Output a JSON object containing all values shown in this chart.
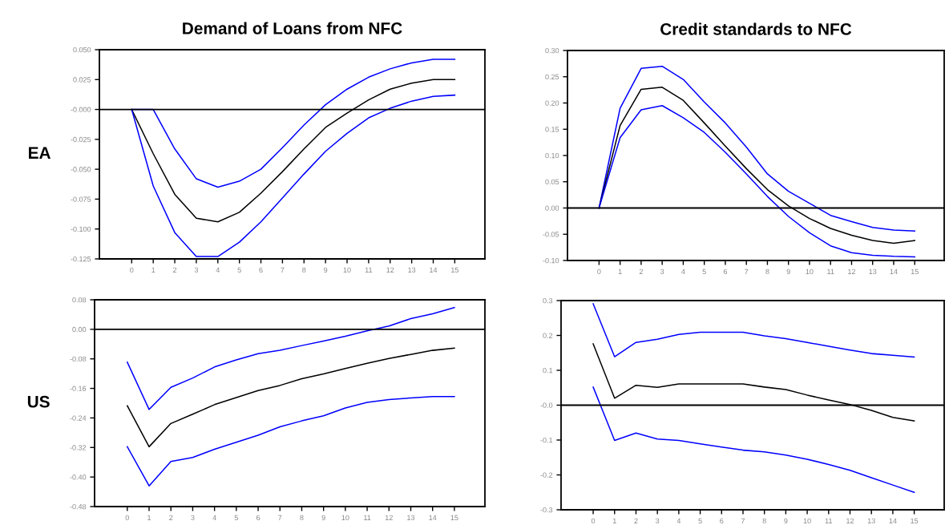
{
  "chart_data": [
    {
      "type": "line",
      "title": "Demand of Loans from NFC",
      "ylabel": "EA",
      "x": [
        0,
        1,
        2,
        3,
        4,
        5,
        6,
        7,
        8,
        9,
        10,
        11,
        12,
        13,
        14,
        15
      ],
      "xlim": [
        -1.5,
        16.4
      ],
      "xticks": [
        0,
        1,
        2,
        3,
        4,
        5,
        6,
        7,
        8,
        9,
        10,
        11,
        12,
        13,
        14,
        15
      ],
      "ylim": [
        -0.125,
        0.05
      ],
      "yticks": [
        {
          "value": 0.05,
          "label": "0.050"
        },
        {
          "value": 0.025,
          "label": "0.025"
        },
        {
          "value": 0,
          "label": "-0.000"
        },
        {
          "value": -0.025,
          "label": "-0.025"
        },
        {
          "value": -0.05,
          "label": "-0.050"
        },
        {
          "value": -0.075,
          "label": "-0.075"
        },
        {
          "value": -0.1,
          "label": "-0.100"
        },
        {
          "value": -0.125,
          "label": "-0.125"
        }
      ],
      "grid": false,
      "ref_lines": [
        {
          "axis": "y",
          "value": 0,
          "color": "#000000"
        }
      ],
      "series": [
        {
          "color": "#0000ff",
          "values": [
            0,
            0,
            -0.033,
            -0.058,
            -0.065,
            -0.06,
            -0.05,
            -0.032,
            -0.013,
            0.004,
            0.017,
            0.027,
            0.034,
            0.039,
            0.042,
            0.042
          ]
        },
        {
          "color": "#000000",
          "values": [
            0,
            -0.037,
            -0.071,
            -0.091,
            -0.094,
            -0.086,
            -0.07,
            -0.052,
            -0.033,
            -0.015,
            -0.003,
            0.008,
            0.017,
            0.022,
            0.025,
            0.025
          ]
        },
        {
          "color": "#0000ff",
          "values": [
            0,
            -0.064,
            -0.103,
            -0.123,
            -0.123,
            -0.111,
            -0.094,
            -0.074,
            -0.054,
            -0.035,
            -0.02,
            -0.007,
            0.001,
            0.007,
            0.011,
            0.012
          ]
        }
      ]
    },
    {
      "type": "line",
      "title": "Credit standards to NFC",
      "x": [
        0,
        1,
        2,
        3,
        4,
        5,
        6,
        7,
        8,
        9,
        10,
        11,
        12,
        13,
        14,
        15
      ],
      "xlim": [
        -1.5,
        16.4
      ],
      "xticks": [
        0,
        1,
        2,
        3,
        4,
        5,
        6,
        7,
        8,
        9,
        10,
        11,
        12,
        13,
        14,
        15
      ],
      "ylim": [
        -0.1,
        0.3
      ],
      "yticks": [
        {
          "value": 0.3,
          "label": "0.30"
        },
        {
          "value": 0.25,
          "label": "0.25"
        },
        {
          "value": 0.2,
          "label": "0.20"
        },
        {
          "value": 0.15,
          "label": "0.15"
        },
        {
          "value": 0.1,
          "label": "0.10"
        },
        {
          "value": 0.05,
          "label": "0.05"
        },
        {
          "value": 0,
          "label": "0.00"
        },
        {
          "value": -0.05,
          "label": "-0.05"
        },
        {
          "value": -0.1,
          "label": "-0.10"
        }
      ],
      "grid": false,
      "ref_lines": [
        {
          "axis": "y",
          "value": 0,
          "color": "#000000"
        }
      ],
      "series": [
        {
          "color": "#0000ff",
          "values": [
            0,
            0.19,
            0.266,
            0.27,
            0.245,
            0.202,
            0.162,
            0.116,
            0.065,
            0.032,
            0.009,
            -0.014,
            -0.026,
            -0.037,
            -0.042,
            -0.044
          ]
        },
        {
          "color": "#000000",
          "values": [
            0,
            0.157,
            0.226,
            0.23,
            0.205,
            0.162,
            0.118,
            0.075,
            0.035,
            0.004,
            -0.02,
            -0.039,
            -0.052,
            -0.062,
            -0.067,
            -0.062
          ]
        },
        {
          "color": "#0000ff",
          "values": [
            0,
            0.134,
            0.187,
            0.195,
            0.172,
            0.144,
            0.106,
            0.065,
            0.022,
            -0.016,
            -0.047,
            -0.072,
            -0.085,
            -0.09,
            -0.092,
            -0.093
          ]
        }
      ]
    },
    {
      "type": "line",
      "ylabel": "US",
      "x": [
        0,
        1,
        2,
        3,
        4,
        5,
        6,
        7,
        8,
        9,
        10,
        11,
        12,
        13,
        14,
        15
      ],
      "xlim": [
        -1.5,
        16.4
      ],
      "xticks": [
        0,
        1,
        2,
        3,
        4,
        5,
        6,
        7,
        8,
        9,
        10,
        11,
        12,
        13,
        14,
        15
      ],
      "ylim": [
        -0.48,
        0.08
      ],
      "yticks": [
        {
          "value": 0.08,
          "label": "0.08"
        },
        {
          "value": 0,
          "label": "0.00"
        },
        {
          "value": -0.08,
          "label": "-0.08"
        },
        {
          "value": -0.16,
          "label": "-0.16"
        },
        {
          "value": -0.24,
          "label": "-0.24"
        },
        {
          "value": -0.32,
          "label": "-0.32"
        },
        {
          "value": -0.4,
          "label": "-0.40"
        },
        {
          "value": -0.48,
          "label": "-0.48"
        }
      ],
      "grid": false,
      "ref_lines": [
        {
          "axis": "y",
          "value": 0,
          "color": "#000000"
        }
      ],
      "series": [
        {
          "color": "#0000ff",
          "values": [
            -0.089,
            -0.217,
            -0.157,
            -0.132,
            -0.102,
            -0.083,
            -0.066,
            -0.057,
            -0.044,
            -0.032,
            -0.019,
            -0.004,
            0.009,
            0.029,
            0.042,
            0.059
          ]
        },
        {
          "color": "#000000",
          "values": [
            -0.207,
            -0.318,
            -0.255,
            -0.23,
            -0.204,
            -0.185,
            -0.166,
            -0.152,
            -0.134,
            -0.121,
            -0.106,
            -0.092,
            -0.079,
            -0.068,
            -0.057,
            -0.051
          ]
        },
        {
          "color": "#0000ff",
          "values": [
            -0.318,
            -0.424,
            -0.358,
            -0.347,
            -0.325,
            -0.306,
            -0.287,
            -0.264,
            -0.248,
            -0.234,
            -0.213,
            -0.198,
            -0.19,
            -0.186,
            -0.182,
            -0.182
          ]
        }
      ]
    },
    {
      "type": "line",
      "x": [
        0,
        1,
        2,
        3,
        4,
        5,
        6,
        7,
        8,
        9,
        10,
        11,
        12,
        13,
        14,
        15
      ],
      "xlim": [
        -1.5,
        16.4
      ],
      "xticks": [
        0,
        1,
        2,
        3,
        4,
        5,
        6,
        7,
        8,
        9,
        10,
        11,
        12,
        13,
        14,
        15
      ],
      "ylim": [
        -0.3,
        0.3
      ],
      "yticks": [
        {
          "value": 0.3,
          "label": "0.3"
        },
        {
          "value": 0.2,
          "label": "0.2"
        },
        {
          "value": 0.1,
          "label": "0.1"
        },
        {
          "value": 0,
          "label": "-0.0"
        },
        {
          "value": -0.1,
          "label": "-0.1"
        },
        {
          "value": -0.2,
          "label": "-0.2"
        },
        {
          "value": -0.3,
          "label": "-0.3"
        }
      ],
      "grid": false,
      "ref_lines": [
        {
          "axis": "y",
          "value": 0,
          "color": "#000000"
        }
      ],
      "series": [
        {
          "color": "#0000ff",
          "values": [
            0.291,
            0.139,
            0.18,
            0.189,
            0.203,
            0.209,
            0.209,
            0.209,
            0.199,
            0.191,
            0.18,
            0.169,
            0.158,
            0.148,
            0.143,
            0.138
          ]
        },
        {
          "color": "#000000",
          "values": [
            0.176,
            0.02,
            0.057,
            0.051,
            0.061,
            0.061,
            0.061,
            0.061,
            0.052,
            0.045,
            0.029,
            0.015,
            0.002,
            -0.015,
            -0.035,
            -0.045
          ]
        },
        {
          "color": "#0000ff",
          "values": [
            0.052,
            -0.101,
            -0.08,
            -0.097,
            -0.101,
            -0.111,
            -0.12,
            -0.129,
            -0.134,
            -0.143,
            -0.155,
            -0.17,
            -0.187,
            -0.208,
            -0.229,
            -0.25
          ]
        }
      ]
    }
  ]
}
